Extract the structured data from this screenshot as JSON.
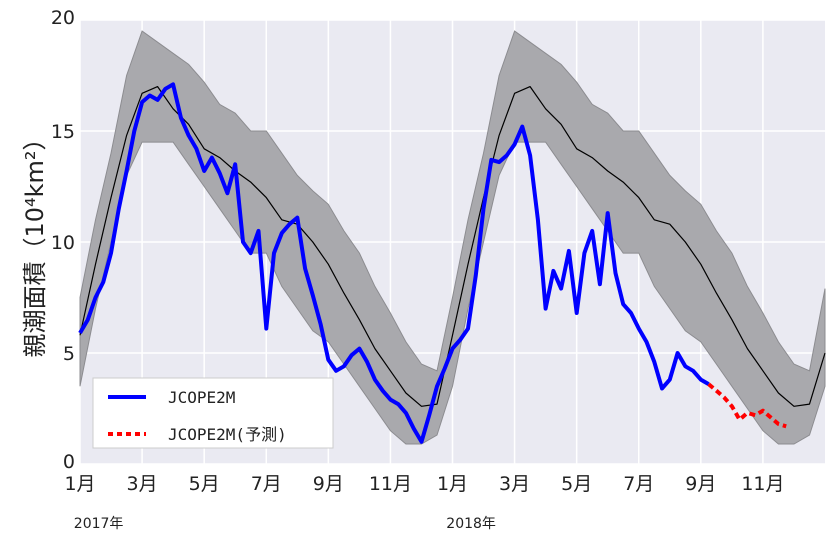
{
  "chart_data": {
    "type": "line",
    "ylabel": "親潮面積（10⁴km²）",
    "ylim": [
      0,
      20
    ],
    "yticks": [
      "0",
      "5",
      "10",
      "15",
      "20"
    ],
    "xlim": [
      0,
      24
    ],
    "xticks": [
      {
        "x": 0,
        "label": "1月"
      },
      {
        "x": 2,
        "label": "3月"
      },
      {
        "x": 4,
        "label": "5月"
      },
      {
        "x": 6,
        "label": "7月"
      },
      {
        "x": 8,
        "label": "9月"
      },
      {
        "x": 10,
        "label": "11月"
      },
      {
        "x": 12,
        "label": "1月"
      },
      {
        "x": 14,
        "label": "3月"
      },
      {
        "x": 16,
        "label": "5月"
      },
      {
        "x": 18,
        "label": "7月"
      },
      {
        "x": 20,
        "label": "9月"
      },
      {
        "x": 22,
        "label": "11月"
      }
    ],
    "year_labels": [
      {
        "x": 0.6,
        "label": "2017年"
      },
      {
        "x": 12.6,
        "label": "2018年"
      }
    ],
    "grid": true,
    "legend_position": "bottom-left",
    "colors": {
      "background": "#eaeaf2",
      "grid": "#ffffff",
      "band": "#a9a9ad",
      "mean": "#000000",
      "observed": "#0000ff",
      "forecast": "#ff0000"
    },
    "band": {
      "x": [
        0,
        0.5,
        1,
        1.5,
        2,
        2.5,
        3,
        3.5,
        4,
        4.5,
        5,
        5.5,
        6,
        6.5,
        7,
        7.5,
        8,
        8.5,
        9,
        9.5,
        10,
        10.5,
        11,
        11.5,
        12,
        12.5,
        13,
        13.5,
        14,
        14.5,
        15,
        15.5,
        16,
        16.5,
        17,
        17.5,
        18,
        18.5,
        19,
        19.5,
        20,
        20.5,
        21,
        21.5,
        22,
        22.5,
        23,
        23.5,
        24
      ],
      "upper": [
        7.5,
        11,
        14,
        17.5,
        19.5,
        19,
        18.5,
        18,
        17.2,
        16.2,
        15.8,
        15,
        15,
        14,
        13,
        12.3,
        11.7,
        10.5,
        9.5,
        8,
        6.8,
        5.5,
        4.5,
        4.2,
        7.5,
        11,
        14,
        17.5,
        19.5,
        19,
        18.5,
        18,
        17.2,
        16.2,
        15.8,
        15,
        15,
        14,
        13,
        12.3,
        11.7,
        10.5,
        9.5,
        8,
        6.8,
        5.5,
        4.5,
        4.2,
        7.9
      ],
      "lower": [
        3.5,
        7,
        10,
        13,
        14.5,
        14.5,
        14.5,
        13.5,
        12.5,
        11.5,
        10.5,
        9.5,
        9.5,
        8,
        7,
        6,
        5.5,
        4.5,
        3.5,
        2.5,
        1.5,
        0.9,
        0.9,
        1.3,
        3.5,
        7,
        10,
        13,
        14.5,
        14.5,
        14.5,
        13.5,
        12.5,
        11.5,
        10.5,
        9.5,
        9.5,
        8,
        7,
        6,
        5.5,
        4.5,
        3.5,
        2.5,
        1.5,
        0.9,
        0.9,
        1.3,
        3.5
      ]
    },
    "series": [
      {
        "name": "",
        "style": "mean",
        "x": [
          0,
          0.5,
          1,
          1.5,
          2,
          2.5,
          3,
          3.5,
          4,
          4.5,
          5,
          5.5,
          6,
          6.5,
          7,
          7.5,
          8,
          8.5,
          9,
          9.5,
          10,
          10.5,
          11,
          11.5,
          12,
          12.5,
          13,
          13.5,
          14,
          14.5,
          15,
          15.5,
          16,
          16.5,
          17,
          17.5,
          18,
          18.5,
          19,
          19.5,
          20,
          20.5,
          21,
          21.5,
          22,
          22.5,
          23,
          23.5,
          24
        ],
        "y": [
          5.8,
          9,
          12,
          14.8,
          16.7,
          17,
          16,
          15.3,
          14.2,
          13.8,
          13.2,
          12.7,
          12,
          11,
          10.8,
          10,
          9,
          7.7,
          6.5,
          5.2,
          4.2,
          3.2,
          2.6,
          2.7,
          5.8,
          9,
          12,
          14.8,
          16.7,
          17,
          16,
          15.3,
          14.2,
          13.8,
          13.2,
          12.7,
          12,
          11,
          10.8,
          10,
          9,
          7.7,
          6.5,
          5.2,
          4.2,
          3.2,
          2.6,
          2.7,
          5
        ]
      },
      {
        "name": "JCOPE2M",
        "style": "observed",
        "x": [
          0,
          0.25,
          0.5,
          0.75,
          1,
          1.25,
          1.5,
          1.75,
          2,
          2.25,
          2.5,
          2.75,
          3,
          3.25,
          3.5,
          3.75,
          4,
          4.25,
          4.5,
          4.75,
          5,
          5.25,
          5.5,
          5.75,
          6,
          6.25,
          6.5,
          6.75,
          7,
          7.25,
          7.5,
          7.75,
          8,
          8.25,
          8.5,
          8.75,
          9,
          9.25,
          9.5,
          9.75,
          10,
          10.25,
          10.5,
          10.75,
          11,
          11.25,
          11.5,
          11.75,
          12,
          12.25,
          12.5,
          12.75,
          13,
          13.25,
          13.5,
          13.75,
          14,
          14.25,
          14.5,
          14.75,
          15,
          15.25,
          15.5,
          15.75,
          16,
          16.25,
          16.5,
          16.75,
          17,
          17.25,
          17.5,
          17.75,
          18,
          18.25,
          18.5,
          18.75,
          19,
          19.25,
          19.5,
          19.75,
          20,
          20.25
        ],
        "y": [
          5.9,
          6.5,
          7.5,
          8.2,
          9.5,
          11.5,
          13.2,
          15,
          16.3,
          16.6,
          16.4,
          16.9,
          17.1,
          15.6,
          14.8,
          14.2,
          13.2,
          13.8,
          13.1,
          12.2,
          13.5,
          10,
          9.5,
          10.5,
          6.1,
          9.5,
          10.4,
          10.8,
          11.1,
          8.8,
          7.6,
          6.3,
          4.7,
          4.2,
          4.4,
          4.9,
          5.2,
          4.6,
          3.8,
          3.3,
          2.9,
          2.7,
          2.3,
          1.6,
          1.0,
          2.2,
          3.5,
          4.3,
          5.2,
          5.6,
          6.1,
          8.5,
          11.5,
          13.7,
          13.6,
          13.9,
          14.4,
          15.2,
          13.9,
          11,
          7,
          8.7,
          7.9,
          9.6,
          6.8,
          9.5,
          10.5,
          8.1,
          11.3,
          8.6,
          7.2,
          6.8,
          6.1,
          5.5,
          4.6,
          3.4,
          3.8,
          5,
          4.4,
          4.2,
          3.8,
          3.6
        ]
      },
      {
        "name": "JCOPE2M(予測)",
        "style": "forecast",
        "x": [
          20.25,
          20.5,
          20.75,
          21,
          21.25,
          21.5,
          21.75,
          22,
          22.25,
          22.5,
          22.75
        ],
        "y": [
          3.6,
          3.3,
          3.0,
          2.6,
          2.0,
          2.3,
          2.2,
          2.4,
          2.1,
          1.8,
          1.7
        ]
      }
    ]
  }
}
